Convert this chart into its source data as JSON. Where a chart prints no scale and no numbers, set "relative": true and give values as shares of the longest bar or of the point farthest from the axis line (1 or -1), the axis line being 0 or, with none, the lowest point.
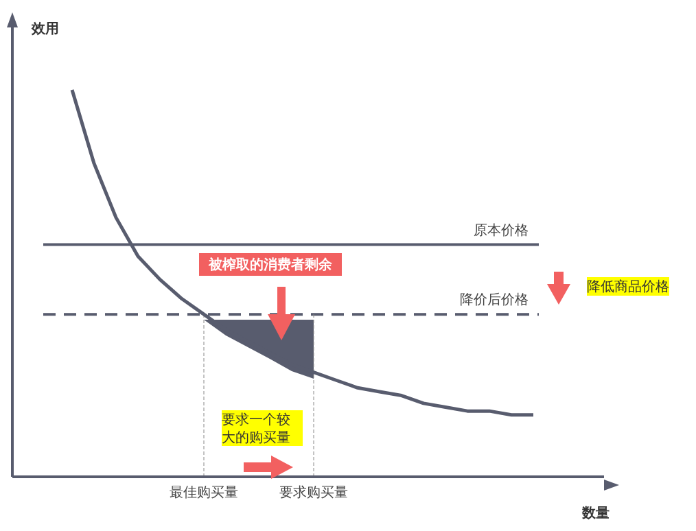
{
  "chart_data": {
    "type": "line",
    "relative": true,
    "xlabel": "数量",
    "ylabel": "效用",
    "categories": [
      null,
      null,
      null,
      null,
      null,
      null,
      "最佳购买量",
      null,
      null,
      null,
      null,
      "要求购买量",
      null,
      null,
      null,
      null,
      null,
      null,
      null,
      null,
      null,
      null
    ],
    "series": [
      {
        "type": "line",
        "color": "#585c6e",
        "values": [
          1.0,
          0.81,
          0.67,
          0.57,
          0.51,
          0.46,
          0.42,
          0.38,
          0.35,
          0.32,
          0.29,
          0.27,
          0.25,
          0.23,
          0.22,
          0.21,
          0.19,
          0.18,
          0.17,
          0.17,
          0.16,
          0.16
        ]
      }
    ],
    "ref_lines": [
      {
        "axis": "y",
        "value": 0.6,
        "label": "原本价格",
        "color": "#585c6e",
        "line_style": "solid"
      },
      {
        "axis": "y",
        "value": 0.42,
        "label": "降价后价格",
        "color": "#585c6e",
        "line_style": "dashed"
      },
      {
        "axis": "x",
        "value": "最佳购买量",
        "color": "#888888",
        "line_style": "dashed"
      },
      {
        "axis": "x",
        "value": "要求购买量",
        "color": "#888888",
        "line_style": "dashed"
      }
    ],
    "annotations": [
      "被榨取的消费者剩余",
      "降低商品价格",
      "要求一个较大的购买量"
    ],
    "grid": false,
    "legend": false,
    "marker": "none"
  }
}
